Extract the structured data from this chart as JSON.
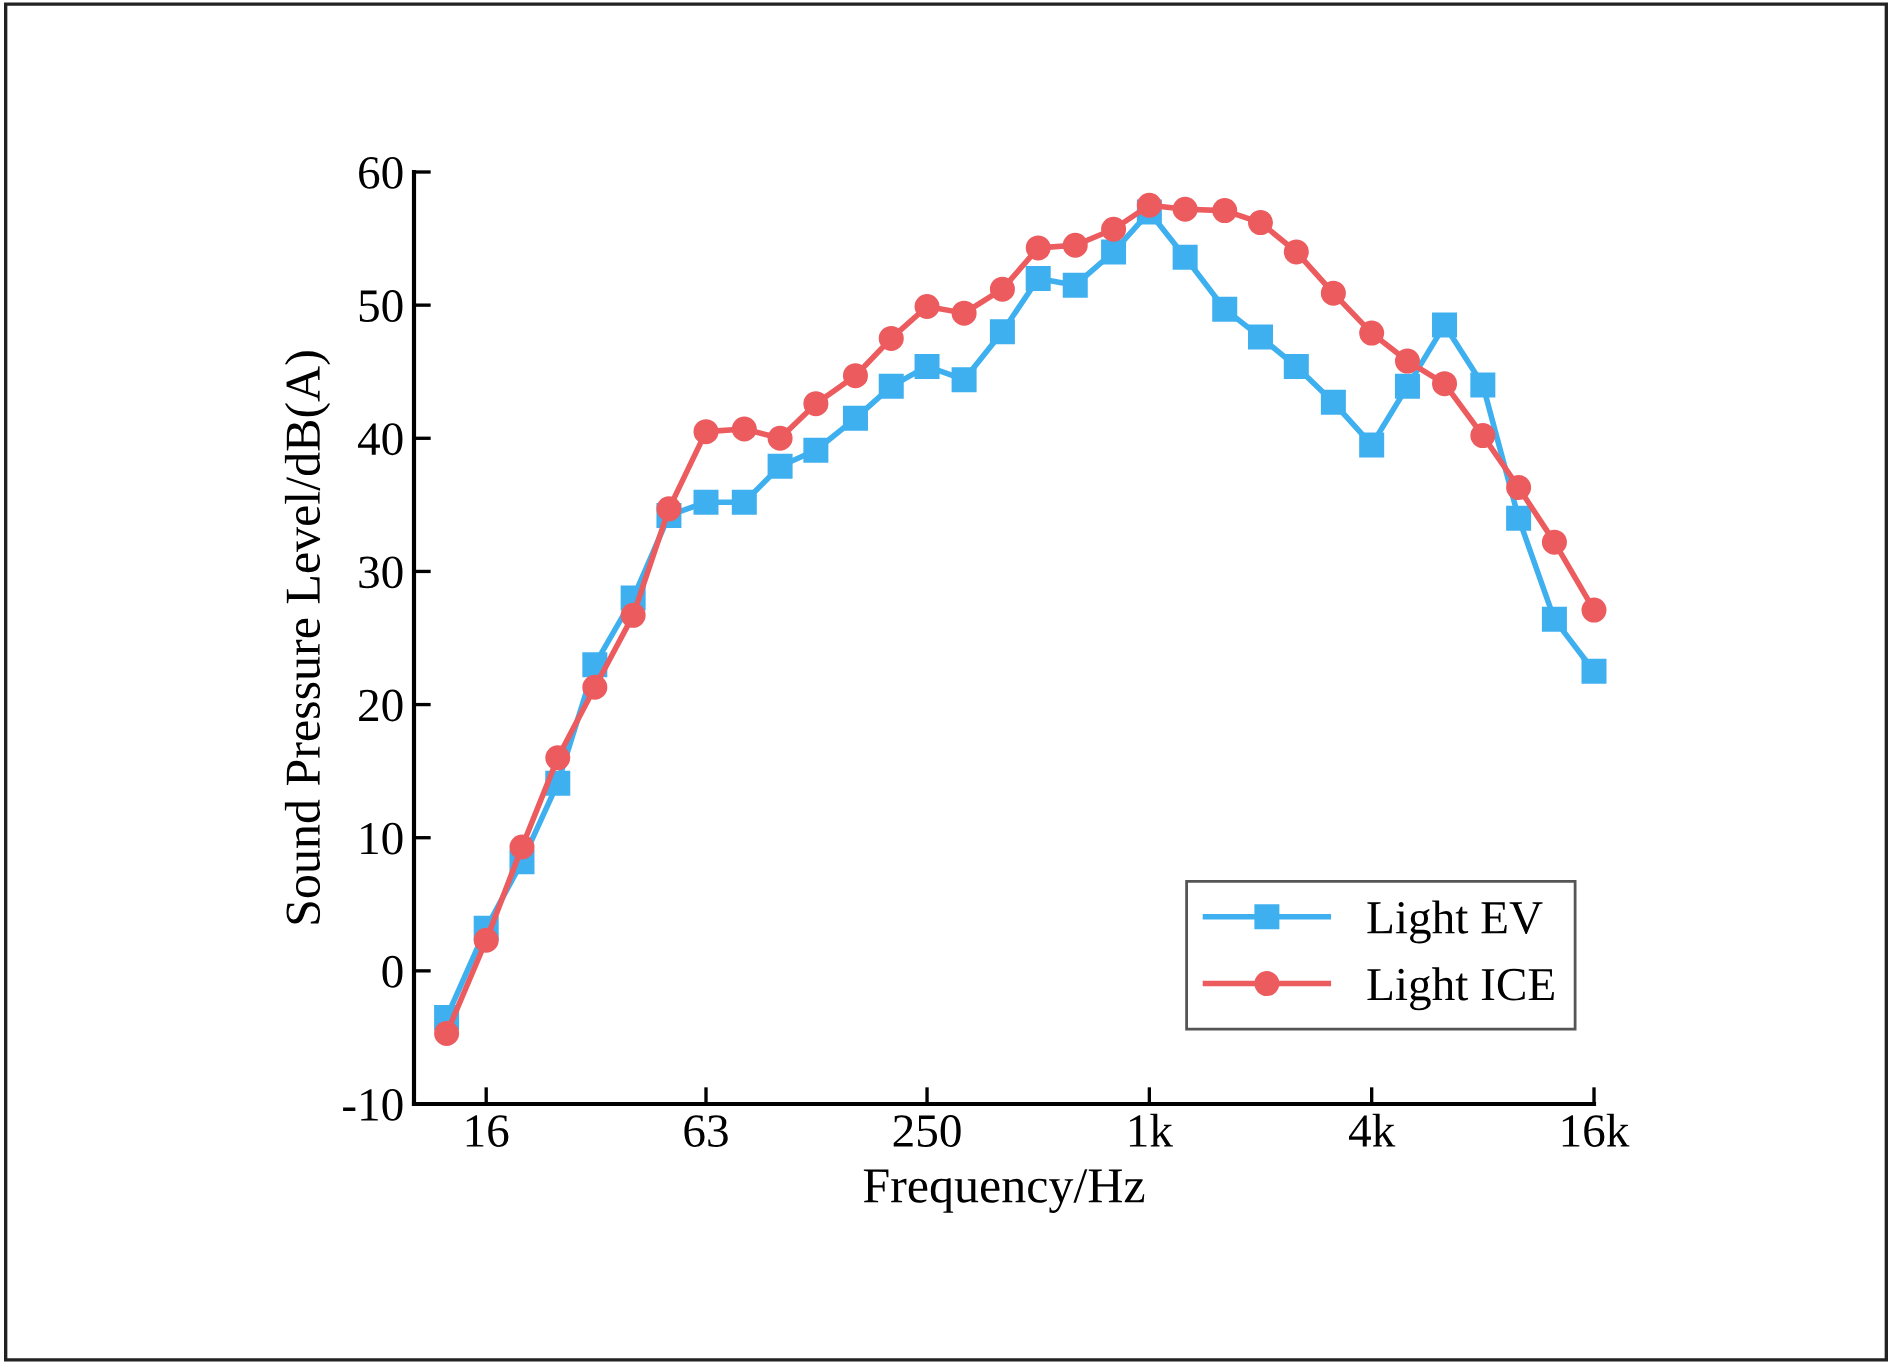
{
  "chart_data": {
    "type": "line",
    "xlabel": "Frequency/Hz",
    "ylabel": "Sound Pressure Level/dB(A)",
    "x": [
      12.5,
      16,
      20,
      25,
      31.5,
      40,
      50,
      63,
      80,
      100,
      125,
      160,
      200,
      250,
      315,
      400,
      500,
      630,
      800,
      1000,
      1250,
      1600,
      2000,
      2500,
      3150,
      4000,
      5000,
      6300,
      8000,
      10000,
      12500,
      16000
    ],
    "log": "x",
    "xlim": [
      10.2,
      16000
    ],
    "xticks": [
      16,
      63,
      250,
      {
        "value": 1000,
        "label": "1k"
      },
      {
        "value": 4000,
        "label": "4k"
      },
      {
        "value": 16000,
        "label": "16k"
      }
    ],
    "ylim": [
      -10,
      60
    ],
    "yticks": [
      -10,
      0,
      10,
      20,
      30,
      40,
      50,
      60
    ],
    "grid": false,
    "legend": "bottom right",
    "line_style": "solid",
    "series": [
      {
        "name": "Light EV",
        "color": "#3fb0ef",
        "marker": "square",
        "values": [
          -3.5,
          3.2,
          8.2,
          14.1,
          23,
          28,
          34.2,
          35.2,
          35.2,
          37.9,
          39.1,
          41.5,
          43.9,
          45.4,
          44.4,
          48,
          52,
          51.5,
          54,
          57,
          53.6,
          49.7,
          47.6,
          45.4,
          42.7,
          39.5,
          43.9,
          48.5,
          44,
          34,
          26.4,
          22.5
        ]
      },
      {
        "name": "Light ICE",
        "color": "#ec5b5e",
        "marker": "circle",
        "values": [
          -4.7,
          2.3,
          9.3,
          16,
          21.3,
          26.7,
          34.7,
          40.5,
          40.7,
          40,
          42.6,
          44.7,
          47.5,
          49.9,
          49.4,
          51.2,
          54.3,
          54.5,
          55.7,
          57.5,
          57.2,
          57.1,
          56.2,
          54,
          50.9,
          47.9,
          45.8,
          44.1,
          40.2,
          36.3,
          32.2,
          27.1
        ]
      }
    ]
  }
}
